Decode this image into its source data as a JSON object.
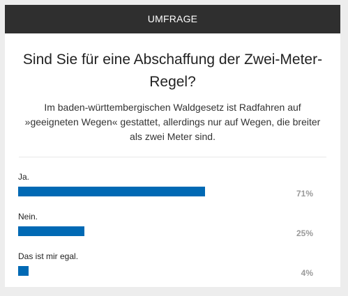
{
  "poll": {
    "header": "UMFRAGE",
    "question": "Sind Sie für eine Abschaffung der Zwei-Meter-Regel?",
    "description": "Im baden-württembergischen Waldgesetz ist Radfahren auf »geeigneten Wegen« gestattet, allerdings nur auf Wegen, die breiter als zwei Meter sind.",
    "answers": [
      {
        "label": "Ja.",
        "percent_text": "71%",
        "value": 71
      },
      {
        "label": "Nein.",
        "percent_text": "25%",
        "value": 25
      },
      {
        "label": "Das ist mir egal.",
        "percent_text": "4%",
        "value": 4
      }
    ],
    "bar_color": "#0069b4"
  }
}
